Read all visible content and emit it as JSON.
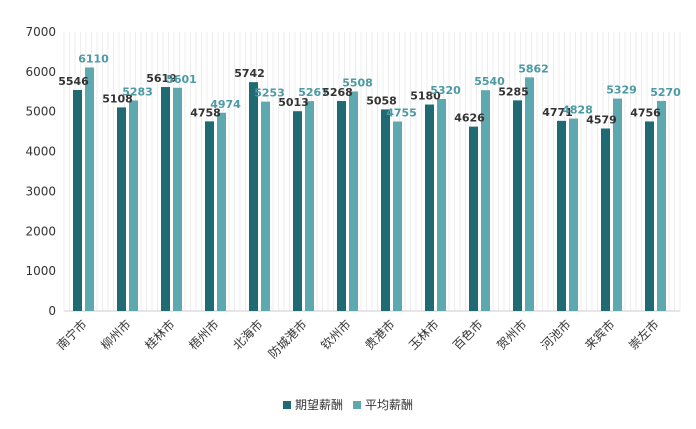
{
  "chart_data": {
    "type": "bar",
    "categories": [
      "南宁市",
      "柳州市",
      "桂林市",
      "梧州市",
      "北海市",
      "防城港市",
      "钦州市",
      "贵港市",
      "玉林市",
      "百色市",
      "贺州市",
      "河池市",
      "来宾市",
      "崇左市"
    ],
    "series": [
      {
        "name": "期望薪酬",
        "color": "#1f6a73",
        "values": [
          5546,
          5108,
          5619,
          4758,
          5742,
          5013,
          5268,
          5058,
          5180,
          4626,
          5285,
          4771,
          4579,
          4756
        ]
      },
      {
        "name": "平均薪酬",
        "color": "#5ea9b0",
        "values": [
          6110,
          5283,
          5601,
          4974,
          5253,
          5267,
          5508,
          4755,
          5320,
          5540,
          5862,
          4828,
          5329,
          5270
        ]
      }
    ],
    "title": "",
    "xlabel": "",
    "ylabel": "",
    "ylim": [
      0,
      7000
    ],
    "yticks": [
      0,
      1000,
      2000,
      3000,
      4000,
      5000,
      6000,
      7000
    ],
    "grid": "vertical",
    "legend_position": "bottom"
  }
}
